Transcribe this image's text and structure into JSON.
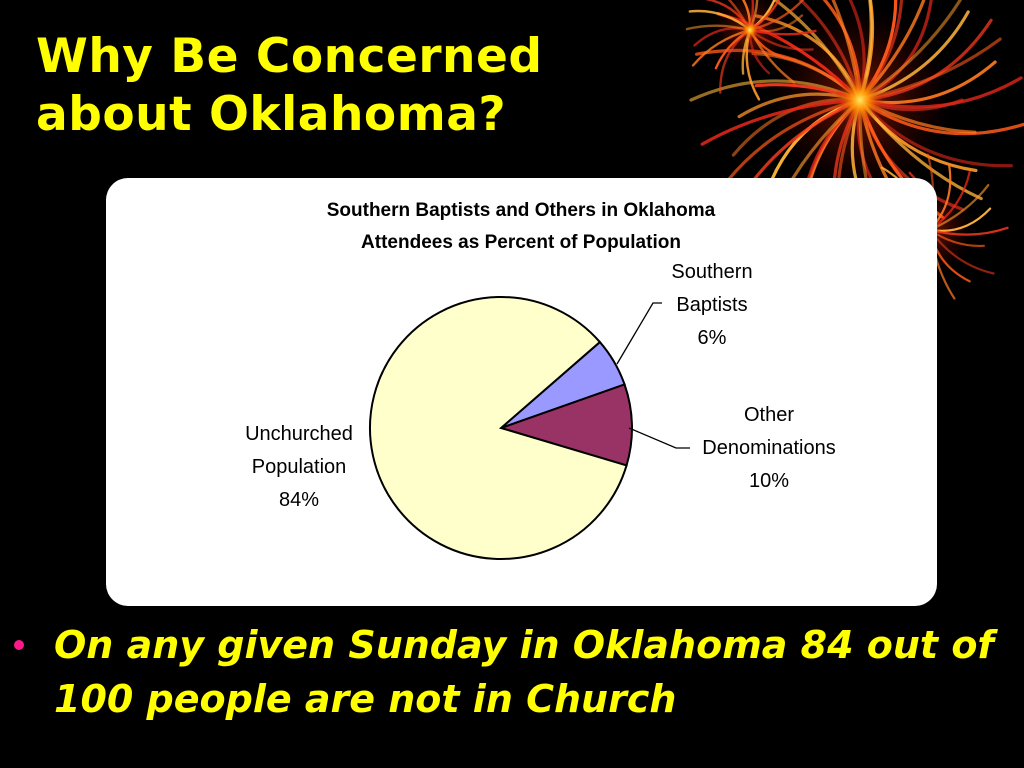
{
  "slide": {
    "title_line1": "Why Be Concerned",
    "title_line2": "about Oklahoma?",
    "bullet": "On any given Sunday in Oklahoma 84 out of 100 people are not in Church",
    "colors": {
      "background": "#000000",
      "title": "#ffff00",
      "bullet_marker": "#ff1a8c"
    },
    "decoration": "firework-image"
  },
  "chart_data": {
    "type": "pie",
    "title_line1": "Southern Baptists and Others in Oklahoma",
    "title_line2": "Attendees as Percent of Population",
    "slices": [
      {
        "label_lines": [
          "Southern",
          "Baptists",
          "6%"
        ],
        "value": 6,
        "color": "#9999ff"
      },
      {
        "label_lines": [
          "Other",
          "Denominations",
          "10%"
        ],
        "value": 10,
        "color": "#993366"
      },
      {
        "label_lines": [
          "Unchurched",
          "Population",
          "84%"
        ],
        "value": 84,
        "color": "#ffffcc"
      }
    ],
    "legend": "none"
  }
}
